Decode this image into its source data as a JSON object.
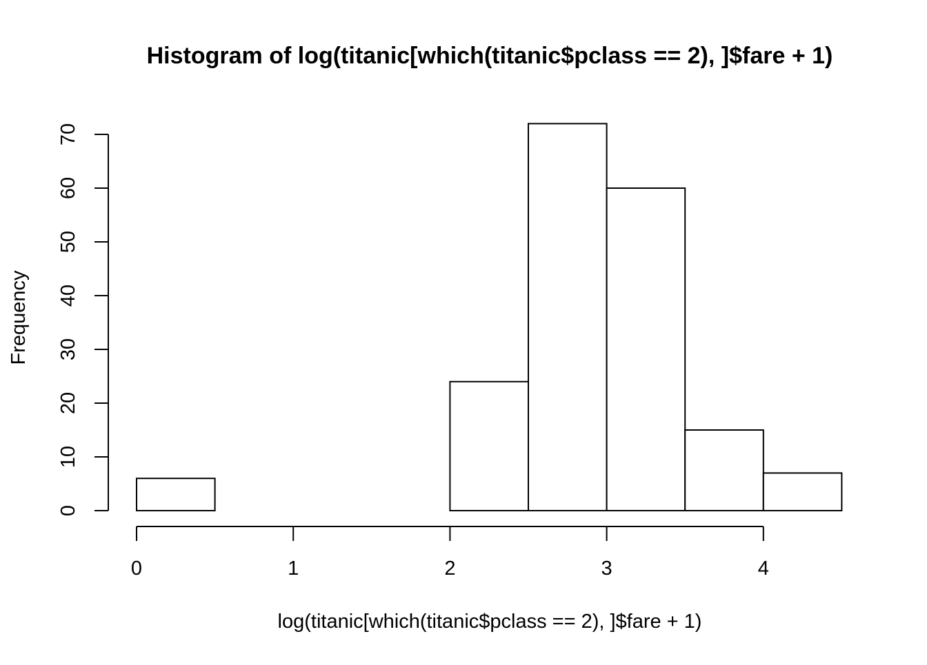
{
  "chart_data": {
    "type": "bar",
    "title": "Histogram of log(titanic[which(titanic$pclass == 2), ]$fare + 1)",
    "xlabel": "log(titanic[which(titanic$pclass == 2), ]$fare + 1)",
    "ylabel": "Frequency",
    "bins": [
      {
        "x0": 0.0,
        "x1": 0.5,
        "count": 6
      },
      {
        "x0": 0.5,
        "x1": 1.0,
        "count": 0
      },
      {
        "x0": 1.0,
        "x1": 1.5,
        "count": 0
      },
      {
        "x0": 1.5,
        "x1": 2.0,
        "count": 0
      },
      {
        "x0": 2.0,
        "x1": 2.5,
        "count": 24
      },
      {
        "x0": 2.5,
        "x1": 3.0,
        "count": 72
      },
      {
        "x0": 3.0,
        "x1": 3.5,
        "count": 60
      },
      {
        "x0": 3.5,
        "x1": 4.0,
        "count": 15
      },
      {
        "x0": 4.0,
        "x1": 4.5,
        "count": 7
      }
    ],
    "xticks": [
      0,
      1,
      2,
      3,
      4
    ],
    "yticks": [
      0,
      10,
      20,
      30,
      40,
      50,
      60,
      70
    ],
    "xlim": [
      0,
      4.5
    ],
    "ylim": [
      0,
      72
    ],
    "colors": {
      "bar_fill": "#ffffff",
      "bar_stroke": "#000000"
    },
    "grid": false
  }
}
